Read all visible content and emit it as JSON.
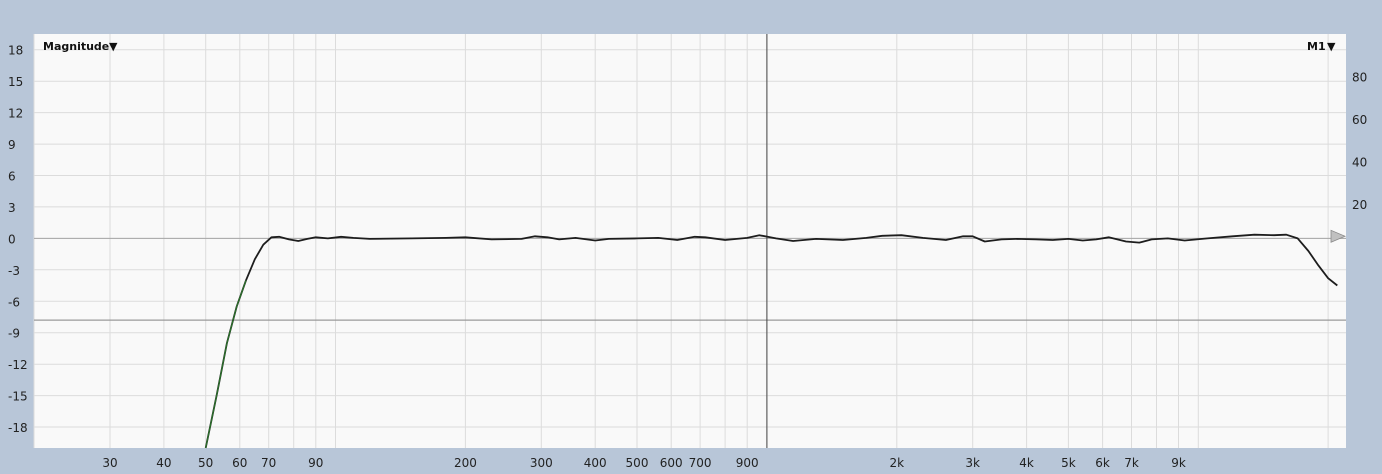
{
  "header": {
    "left_label": "Magnitude",
    "right_label": "M1",
    "dropdown_glyph": "▼"
  },
  "colors": {
    "frame": "#b8c6d8",
    "plot_bg": "#f9f9f9",
    "grid": "#dcdcdc",
    "zero_line": "#a6a6a6",
    "threshold_line": "#9a9a9a",
    "cursor_line": "#444444",
    "curve": "#1d1d1d",
    "slope_highlight": "#2e8b2e",
    "marker": "#c0c0c0"
  },
  "chart_data": {
    "type": "line",
    "title": "",
    "xlabel": "",
    "ylabel": "",
    "x_scale": "log",
    "xlim": [
      20,
      22000
    ],
    "ylim": [
      -20,
      19.5
    ],
    "y_ticks": [
      18,
      15,
      12,
      9,
      6,
      3,
      0,
      -3,
      -6,
      -9,
      -12,
      -15,
      -18
    ],
    "x_tick_labels": [
      {
        "x": 30,
        "label": "30"
      },
      {
        "x": 40,
        "label": "40"
      },
      {
        "x": 50,
        "label": "50"
      },
      {
        "x": 60,
        "label": "60"
      },
      {
        "x": 70,
        "label": "70"
      },
      {
        "x": 90,
        "label": "90"
      },
      {
        "x": 200,
        "label": "200"
      },
      {
        "x": 300,
        "label": "300"
      },
      {
        "x": 400,
        "label": "400"
      },
      {
        "x": 500,
        "label": "500"
      },
      {
        "x": 600,
        "label": "600"
      },
      {
        "x": 700,
        "label": "700"
      },
      {
        "x": 900,
        "label": "900"
      },
      {
        "x": 2000,
        "label": "2k"
      },
      {
        "x": 3000,
        "label": "3k"
      },
      {
        "x": 4000,
        "label": "4k"
      },
      {
        "x": 5000,
        "label": "5k"
      },
      {
        "x": 6000,
        "label": "6k"
      },
      {
        "x": 7000,
        "label": "7k"
      },
      {
        "x": 9000,
        "label": "9k"
      }
    ],
    "x_grid": [
      20,
      30,
      40,
      50,
      60,
      70,
      80,
      90,
      100,
      200,
      300,
      400,
      500,
      600,
      700,
      800,
      900,
      1000,
      2000,
      3000,
      4000,
      5000,
      6000,
      7000,
      8000,
      9000,
      10000,
      20000
    ],
    "right_axis": {
      "ticks": [
        80,
        60,
        40,
        20
      ],
      "ylim": [
        -95,
        100
      ]
    },
    "threshold_db": -7.8,
    "cursor_x": 1000,
    "marker_value_db": 0.2,
    "series": [
      {
        "points": [
          [
            50,
            -20
          ],
          [
            53,
            -15
          ],
          [
            56,
            -10
          ],
          [
            59,
            -6.5
          ],
          [
            62,
            -4.0
          ],
          [
            65,
            -2.0
          ],
          [
            68,
            -0.6
          ],
          [
            71,
            0.1
          ],
          [
            74,
            0.15
          ],
          [
            78,
            -0.1
          ],
          [
            82,
            -0.25
          ],
          [
            86,
            -0.05
          ],
          [
            90,
            0.1
          ],
          [
            96,
            0.0
          ],
          [
            103,
            0.15
          ],
          [
            110,
            0.05
          ],
          [
            120,
            -0.05
          ],
          [
            150,
            0.0
          ],
          [
            180,
            0.05
          ],
          [
            200,
            0.1
          ],
          [
            230,
            -0.1
          ],
          [
            270,
            -0.05
          ],
          [
            290,
            0.2
          ],
          [
            310,
            0.1
          ],
          [
            330,
            -0.1
          ],
          [
            360,
            0.05
          ],
          [
            400,
            -0.2
          ],
          [
            430,
            -0.05
          ],
          [
            500,
            0.0
          ],
          [
            560,
            0.05
          ],
          [
            620,
            -0.15
          ],
          [
            680,
            0.15
          ],
          [
            720,
            0.1
          ],
          [
            800,
            -0.15
          ],
          [
            900,
            0.05
          ],
          [
            960,
            0.3
          ],
          [
            1050,
            0.0
          ],
          [
            1150,
            -0.25
          ],
          [
            1300,
            -0.05
          ],
          [
            1500,
            -0.15
          ],
          [
            1700,
            0.05
          ],
          [
            1850,
            0.25
          ],
          [
            2050,
            0.3
          ],
          [
            2300,
            0.05
          ],
          [
            2600,
            -0.15
          ],
          [
            2850,
            0.2
          ],
          [
            3000,
            0.2
          ],
          [
            3200,
            -0.3
          ],
          [
            3500,
            -0.1
          ],
          [
            3800,
            -0.05
          ],
          [
            4200,
            -0.1
          ],
          [
            4600,
            -0.15
          ],
          [
            5000,
            -0.05
          ],
          [
            5400,
            -0.2
          ],
          [
            5800,
            -0.1
          ],
          [
            6200,
            0.1
          ],
          [
            6800,
            -0.3
          ],
          [
            7300,
            -0.4
          ],
          [
            7800,
            -0.1
          ],
          [
            8500,
            0.0
          ],
          [
            9300,
            -0.2
          ],
          [
            10500,
            0.0
          ],
          [
            12000,
            0.2
          ],
          [
            13500,
            0.35
          ],
          [
            15000,
            0.3
          ],
          [
            16000,
            0.35
          ],
          [
            17000,
            0.0
          ],
          [
            18000,
            -1.2
          ],
          [
            19000,
            -2.6
          ],
          [
            20000,
            -3.8
          ],
          [
            21000,
            -4.5
          ]
        ]
      }
    ]
  }
}
